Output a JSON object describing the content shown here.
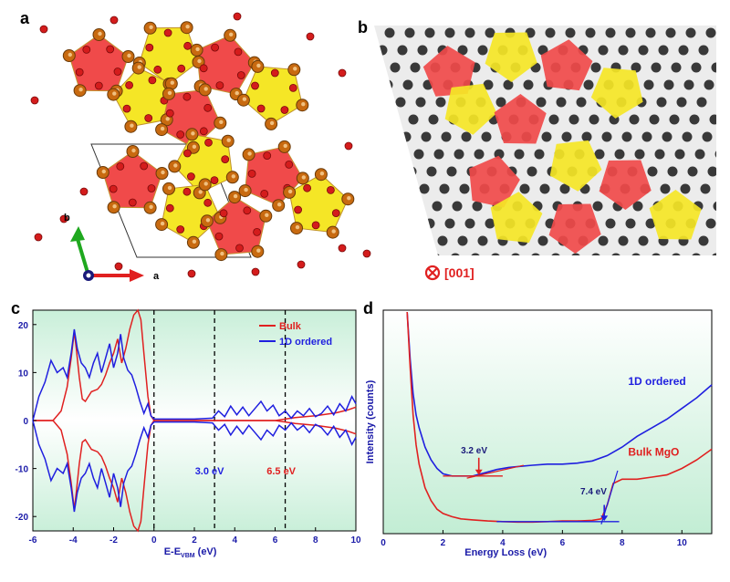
{
  "panels": {
    "a": {
      "label": "a",
      "axis_b": "b",
      "axis_a": "a",
      "axis_c": "c"
    },
    "b": {
      "label": "b",
      "zone_axis": "[001]"
    },
    "c": {
      "label": "c",
      "xlabel_main": "E-E",
      "xlabel_sub": "VBM",
      "xlabel_unit": " (eV)",
      "annot_30": "3.0 eV",
      "annot_65": "6.5 eV"
    },
    "d": {
      "label": "d",
      "annot_32": "3.2 eV",
      "annot_74": "7.4 eV",
      "label_1d": "1D ordered",
      "label_bulk": "Bulk MgO"
    }
  },
  "colors": {
    "bulk": "#e02020",
    "ordered": "#1f1fdf",
    "tick_blue": "#1a1aa8",
    "pentagon_red": "#f04a4a",
    "pentagon_yellow": "#f5e626"
  },
  "chart_data": [
    {
      "id": "c",
      "type": "line",
      "title": "",
      "xlabel": "E-E VBM (eV)",
      "ylabel": "",
      "xlim": [
        -6,
        10
      ],
      "ylim": [
        -23,
        23
      ],
      "xticks": [
        -6,
        -4,
        -2,
        0,
        2,
        4,
        6,
        8,
        10
      ],
      "yticks": [
        -20,
        -10,
        0,
        10,
        20
      ],
      "vlines": [
        0,
        3.0,
        6.5
      ],
      "legend": {
        "placement": "top-right",
        "entries": [
          "Bulk",
          "1D ordered"
        ]
      },
      "series": [
        {
          "name": "Bulk",
          "color": "#e02020",
          "x": [
            -6.0,
            -5.0,
            -4.6,
            -4.3,
            -4.1,
            -3.95,
            -3.85,
            -3.7,
            -3.55,
            -3.4,
            -3.1,
            -2.8,
            -2.6,
            -2.4,
            -2.2,
            -2.0,
            -1.8,
            -1.6,
            -1.4,
            -1.2,
            -1.0,
            -0.8,
            -0.65,
            -0.5,
            -0.3,
            -0.15,
            0.0,
            1.0,
            2.0,
            3.0,
            4.0,
            5.0,
            6.0,
            6.5,
            7.0,
            8.0,
            9.0,
            9.6,
            10.0
          ],
          "values": [
            0,
            0,
            2.0,
            7.0,
            13.0,
            18.5,
            15.0,
            9.0,
            4.5,
            4.0,
            6.0,
            6.5,
            7.5,
            9.5,
            12.0,
            14.0,
            17.0,
            12.0,
            15.0,
            19.0,
            22.0,
            23.0,
            21.0,
            14.0,
            5.0,
            1.0,
            0,
            0,
            0,
            0,
            0,
            0,
            0,
            0.3,
            0.6,
            1.0,
            1.6,
            2.2,
            2.8
          ]
        },
        {
          "name": "1D ordered",
          "color": "#1f1fdf",
          "x": [
            -6.0,
            -5.7,
            -5.4,
            -5.1,
            -4.8,
            -4.5,
            -4.3,
            -4.1,
            -3.95,
            -3.8,
            -3.6,
            -3.4,
            -3.2,
            -3.0,
            -2.8,
            -2.6,
            -2.4,
            -2.2,
            -2.0,
            -1.8,
            -1.65,
            -1.5,
            -1.3,
            -1.1,
            -0.9,
            -0.7,
            -0.5,
            -0.3,
            -0.15,
            0.0,
            1.0,
            2.0,
            2.9,
            3.2,
            3.5,
            3.8,
            4.1,
            4.4,
            4.7,
            5.0,
            5.3,
            5.6,
            5.9,
            6.2,
            6.5,
            6.8,
            7.1,
            7.4,
            7.7,
            8.0,
            8.3,
            8.6,
            8.9,
            9.2,
            9.5,
            9.8,
            10.0
          ],
          "values": [
            0,
            5.0,
            8.0,
            12.5,
            10.0,
            11.0,
            9.0,
            14.0,
            19.0,
            15.0,
            12.0,
            11.0,
            9.0,
            12.0,
            14.0,
            10.0,
            13.0,
            16.0,
            11.0,
            14.0,
            18.0,
            13.0,
            10.5,
            9.5,
            7.0,
            4.0,
            1.5,
            3.5,
            1.0,
            0.3,
            0.3,
            0.3,
            0.5,
            2.0,
            0.8,
            3.0,
            1.2,
            2.8,
            1.0,
            2.5,
            4.0,
            2.0,
            3.2,
            1.0,
            2.0,
            0.5,
            2.0,
            1.0,
            2.5,
            0.8,
            1.5,
            3.0,
            1.2,
            3.5,
            2.0,
            5.0,
            3.5
          ]
        }
      ],
      "mirrored": true
    },
    {
      "id": "d",
      "type": "line",
      "title": "",
      "xlabel": "Energy Loss (eV)",
      "ylabel": "Intensity (counts)",
      "xlim": [
        0,
        11
      ],
      "ylim": [
        0,
        1
      ],
      "xticks": [
        0,
        2,
        4,
        6,
        8,
        10
      ],
      "series": [
        {
          "name": "1D ordered",
          "color": "#1f1fdf",
          "x": [
            0.8,
            0.9,
            1.0,
            1.1,
            1.2,
            1.4,
            1.6,
            1.8,
            2.0,
            2.3,
            2.6,
            3.0,
            3.4,
            3.8,
            4.2,
            4.6,
            5.0,
            5.5,
            6.0,
            6.5,
            7.0,
            7.5,
            8.0,
            8.5,
            9.0,
            9.5,
            10.0,
            10.5,
            11.0
          ],
          "values": [
            1.0,
            0.78,
            0.62,
            0.52,
            0.46,
            0.37,
            0.31,
            0.27,
            0.245,
            0.235,
            0.235,
            0.235,
            0.25,
            0.265,
            0.275,
            0.28,
            0.285,
            0.29,
            0.29,
            0.295,
            0.305,
            0.33,
            0.37,
            0.42,
            0.46,
            0.5,
            0.55,
            0.6,
            0.66
          ]
        },
        {
          "name": "Bulk MgO",
          "color": "#e02020",
          "x": [
            0.8,
            0.9,
            1.0,
            1.1,
            1.2,
            1.4,
            1.6,
            1.8,
            2.0,
            2.3,
            2.6,
            3.0,
            3.5,
            4.0,
            4.5,
            5.0,
            5.5,
            6.0,
            6.5,
            7.0,
            7.3,
            7.5,
            7.7,
            8.0,
            8.5,
            9.0,
            9.5,
            10.0,
            10.5,
            11.0
          ],
          "values": [
            1.0,
            0.74,
            0.52,
            0.38,
            0.29,
            0.18,
            0.12,
            0.08,
            0.06,
            0.045,
            0.035,
            0.03,
            0.025,
            0.022,
            0.02,
            0.02,
            0.022,
            0.025,
            0.025,
            0.028,
            0.035,
            0.1,
            0.2,
            0.22,
            0.22,
            0.23,
            0.24,
            0.27,
            0.31,
            0.36
          ]
        }
      ]
    }
  ]
}
